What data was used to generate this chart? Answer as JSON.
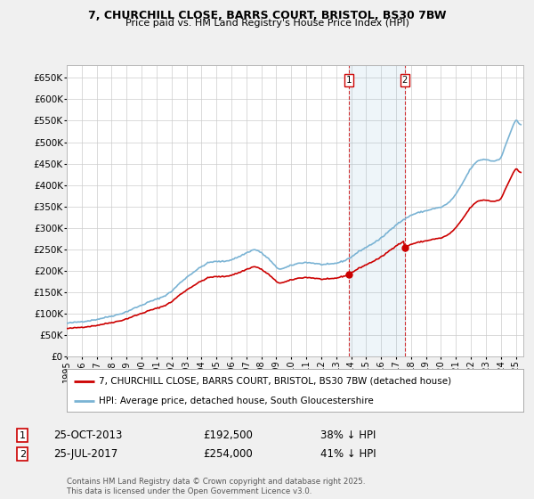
{
  "title1": "7, CHURCHILL CLOSE, BARRS COURT, BRISTOL, BS30 7BW",
  "title2": "Price paid vs. HM Land Registry's House Price Index (HPI)",
  "background_color": "#f0f0f0",
  "plot_bg_color": "#ffffff",
  "grid_color": "#cccccc",
  "hpi_color": "#7ab3d4",
  "property_color": "#cc0000",
  "sale1_date": 2013.82,
  "sale1_price": 192500,
  "sale1_text": "25-OCT-2013",
  "sale1_pct": "38% ↓ HPI",
  "sale2_date": 2017.565,
  "sale2_price": 254000,
  "sale2_text": "25-JUL-2017",
  "sale2_pct": "41% ↓ HPI",
  "legend_property": "7, CHURCHILL CLOSE, BARRS COURT, BRISTOL, BS30 7BW (detached house)",
  "legend_hpi": "HPI: Average price, detached house, South Gloucestershire",
  "footnote": "Contains HM Land Registry data © Crown copyright and database right 2025.\nThis data is licensed under the Open Government Licence v3.0.",
  "ylim_min": 0,
  "ylim_max": 680000,
  "yticks": [
    0,
    50000,
    100000,
    150000,
    200000,
    250000,
    300000,
    350000,
    400000,
    450000,
    500000,
    550000,
    600000,
    650000
  ],
  "ytick_labels": [
    "£0",
    "£50K",
    "£100K",
    "£150K",
    "£200K",
    "£250K",
    "£300K",
    "£350K",
    "£400K",
    "£450K",
    "£500K",
    "£550K",
    "£600K",
    "£650K"
  ],
  "xlim_start": 1995.0,
  "xlim_end": 2025.5
}
